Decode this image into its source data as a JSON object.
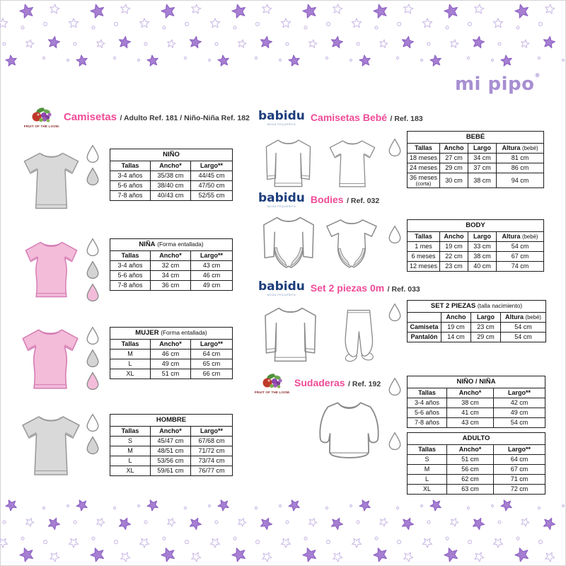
{
  "logo": {
    "mipipo": "mi pipo",
    "registered": "®"
  },
  "brand_logos": {
    "fruit": "FRUIT OF THE LOOM.",
    "babidu": "babidu",
    "babidu_tagline": "MODA PEQUEÑITA"
  },
  "colors": {
    "accent_pink": "#ef4b97",
    "brand_navy": "#1d3d7c",
    "brand_purple": "#a78fd2",
    "star_fill": "#a67fd2",
    "star_stroke": "#8f63c4",
    "star_light": "#cfc0e8",
    "shirt_grey": "#d9d9d9",
    "shirt_grey_stroke": "#9b9b9b",
    "shirt_pink": "#f3bcd9",
    "shirt_pink_stroke": "#d67fb5",
    "shirt_white": "#ffffff",
    "white_stroke": "#8a8a8a",
    "drop_white": "#ffffff",
    "drop_grey": "#d4d4d4",
    "drop_pink": "#f3bcd9",
    "table_border": "#1c1c1c"
  },
  "sections": {
    "camisetas": {
      "title": "Camisetas",
      "refs": "/ Adulto Ref. 181 / Niño-Niña Ref. 182"
    },
    "camisetas_bebe": {
      "title": "Camisetas Bebé",
      "refs": "/ Ref. 183"
    },
    "bodies": {
      "title": "Bodies",
      "refs": "/ Ref. 032"
    },
    "set_2_piezas": {
      "title": "Set 2 piezas 0m",
      "refs": "/ Ref. 033"
    },
    "sudaderas": {
      "title": "Sudaderas",
      "refs": "/ Ref. 192"
    }
  },
  "tables": {
    "nino": {
      "title": "NIÑO",
      "note": "",
      "headers": [
        "Tallas",
        "Ancho*",
        "Largo**"
      ],
      "rows": [
        [
          "3-4 años",
          "35/38 cm",
          "44/45 cm"
        ],
        [
          "5-6 años",
          "38/40 cm",
          "47/50 cm"
        ],
        [
          "7-8 años",
          "40/43 cm",
          "52/55 cm"
        ]
      ]
    },
    "nina": {
      "title": "NIÑA",
      "note": "(Forma entallada)",
      "headers": [
        "Tallas",
        "Ancho*",
        "Largo**"
      ],
      "rows": [
        [
          "3-4 años",
          "32 cm",
          "43 cm"
        ],
        [
          "5-6 años",
          "34 cm",
          "46 cm"
        ],
        [
          "7-8 años",
          "36 cm",
          "49 cm"
        ]
      ]
    },
    "mujer": {
      "title": "MUJER",
      "note": "(Forma entallada)",
      "headers": [
        "Tallas",
        "Ancho*",
        "Largo**"
      ],
      "rows": [
        [
          "M",
          "46 cm",
          "64 cm"
        ],
        [
          "L",
          "49 cm",
          "65 cm"
        ],
        [
          "XL",
          "51 cm",
          "66 cm"
        ]
      ]
    },
    "hombre": {
      "title": "HOMBRE",
      "note": "",
      "headers": [
        "Tallas",
        "Ancho*",
        "Largo**"
      ],
      "rows": [
        [
          "S",
          "45/47 cm",
          "67/68 cm"
        ],
        [
          "M",
          "48/51 cm",
          "71/72 cm"
        ],
        [
          "L",
          "53/56 cm",
          "73/74 cm"
        ],
        [
          "XL",
          "59/61 cm",
          "76/77 cm"
        ]
      ]
    },
    "bebe": {
      "title": "BEBÉ",
      "note": "",
      "headers": [
        "Tallas",
        "Ancho",
        "Largo",
        "Altura (bebé)"
      ],
      "rows": [
        [
          "18 meses",
          "27 cm",
          "34 cm",
          "81 cm"
        ],
        [
          "24 meses",
          "29 cm",
          "37 cm",
          "86 cm"
        ],
        [
          "36 meses\n(corta)",
          "30 cm",
          "38 cm",
          "94 cm"
        ]
      ]
    },
    "body": {
      "title": "BODY",
      "note": "",
      "headers": [
        "Tallas",
        "Ancho",
        "Largo",
        "Altura (bebé)"
      ],
      "rows": [
        [
          "1 mes",
          "19 cm",
          "33 cm",
          "54 cm"
        ],
        [
          "6 meses",
          "22 cm",
          "38 cm",
          "67 cm"
        ],
        [
          "12 meses",
          "23 cm",
          "40 cm",
          "74 cm"
        ]
      ]
    },
    "set2": {
      "title": "SET 2 PIEZAS",
      "note": "(talla nacimiento)",
      "headers": [
        "",
        "Ancho",
        "Largo",
        "Altura (bebé)"
      ],
      "row_header": true,
      "rows": [
        [
          "Camiseta",
          "19 cm",
          "23 cm",
          "54 cm"
        ],
        [
          "Pantalón",
          "14 cm",
          "29 cm",
          "54 cm"
        ]
      ]
    },
    "sudaderas_ninos": {
      "title": "NIÑO / NIÑA",
      "note": "",
      "headers": [
        "Tallas",
        "Ancho*",
        "Largo**"
      ],
      "rows": [
        [
          "3-4 años",
          "38 cm",
          "42 cm"
        ],
        [
          "5-6 años",
          "41 cm",
          "49 cm"
        ],
        [
          "7-8 años",
          "43 cm",
          "54 cm"
        ]
      ]
    },
    "sudaderas_adulto": {
      "title": "ADULTO",
      "note": "",
      "headers": [
        "Tallas",
        "Ancho*",
        "Largo**"
      ],
      "rows": [
        [
          "S",
          "51 cm",
          "64 cm"
        ],
        [
          "M",
          "56 cm",
          "67 cm"
        ],
        [
          "L",
          "62 cm",
          "71 cm"
        ],
        [
          "XL",
          "63 cm",
          "72 cm"
        ]
      ]
    }
  }
}
